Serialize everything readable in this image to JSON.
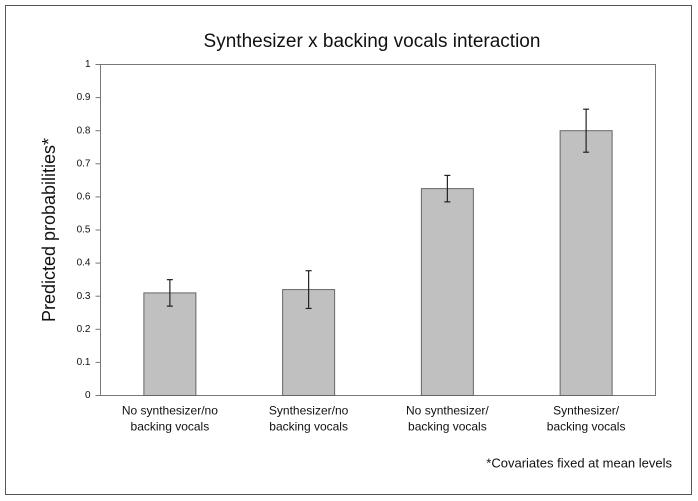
{
  "chart_data": {
    "type": "bar",
    "title": "Synthesizer x backing vocals interaction",
    "ylabel": "Predicted probabilities*",
    "footnote": "*Covariates fixed at mean levels",
    "categories": [
      [
        "No synthesizer/no",
        "backing vocals"
      ],
      [
        "Synthesizer/no",
        "backing vocals"
      ],
      [
        "No synthesizer/",
        "backing vocals"
      ],
      [
        "Synthesizer/",
        "backing vocals"
      ]
    ],
    "values": [
      0.31,
      0.32,
      0.625,
      0.8
    ],
    "errors": [
      0.04,
      0.057,
      0.04,
      0.065
    ],
    "color": "#c0c0c0",
    "ylim": [
      0,
      1
    ],
    "yticks": [
      0,
      0.1,
      0.2,
      0.3,
      0.4,
      0.5,
      0.6,
      0.7,
      0.8,
      0.9,
      1
    ],
    "grid": false
  }
}
